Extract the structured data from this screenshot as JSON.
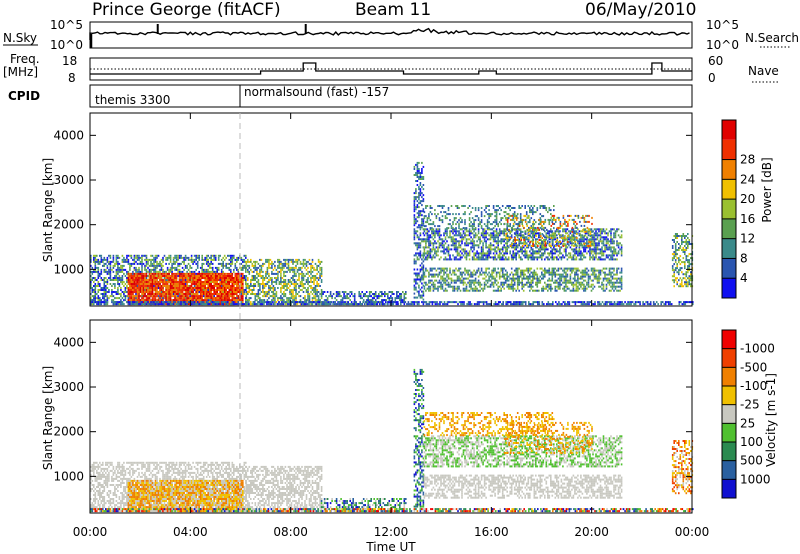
{
  "header": {
    "station": "Prince George (fitACF)",
    "beam": "Beam 11",
    "date": "06/May/2010"
  },
  "top_panel": {
    "left_label": "N.Sky",
    "right_label": "N.Search",
    "left_ticks": [
      "10^5",
      "10^0"
    ],
    "right_ticks": [
      "10^5",
      "10^0"
    ]
  },
  "freq_panel": {
    "left_label_line1": "Freq.",
    "left_label_line2": "[MHz]",
    "left_ticks": [
      "18",
      "8"
    ],
    "right_ticks": [
      "60",
      "0"
    ],
    "right_label": "Nave"
  },
  "cpid_panel": {
    "label": "CPID",
    "modes": [
      {
        "name": "themis 3300",
        "start_hour": 0
      },
      {
        "name": "normalsound (fast) -157",
        "start_hour": 6
      }
    ]
  },
  "chart_data": [
    {
      "type": "heatmap",
      "name": "power",
      "ylabel": "Slant Range [km]",
      "xlabel": "",
      "x_range_hours": [
        0,
        24
      ],
      "ylim": [
        180,
        4500
      ],
      "y_ticks": [
        1000,
        2000,
        3000,
        4000
      ],
      "colorbar_label": "Power [dB]",
      "colorbar_ticks": [
        "4",
        "8",
        "12",
        "16",
        "20",
        "24",
        "28"
      ],
      "colorbar_colors": [
        "#1010f0",
        "#2a55b0",
        "#3a8a8a",
        "#5aa050",
        "#9ac030",
        "#f0c000",
        "#f08000",
        "#f03000",
        "#e00000"
      ]
    },
    {
      "type": "heatmap",
      "name": "velocity",
      "ylabel": "Slant Range [km]",
      "xlabel": "Time UT",
      "x_range_hours": [
        0,
        24
      ],
      "x_ticks": [
        "00:00",
        "04:00",
        "08:00",
        "12:00",
        "16:00",
        "20:00",
        "00:00"
      ],
      "ylim": [
        180,
        4500
      ],
      "y_ticks": [
        1000,
        2000,
        3000,
        4000
      ],
      "colorbar_label": "Velocity [m s-1]",
      "colorbar_ticks": [
        "1000",
        "500",
        "100",
        "25",
        "-25",
        "-100",
        "-500",
        "-1000"
      ],
      "colorbar_colors": [
        "#1010d0",
        "#2a60a0",
        "#2a8a50",
        "#50c030",
        "#c8c8c0",
        "#c8c8c0",
        "#f0c000",
        "#f08000",
        "#f04000",
        "#f00000"
      ]
    }
  ]
}
